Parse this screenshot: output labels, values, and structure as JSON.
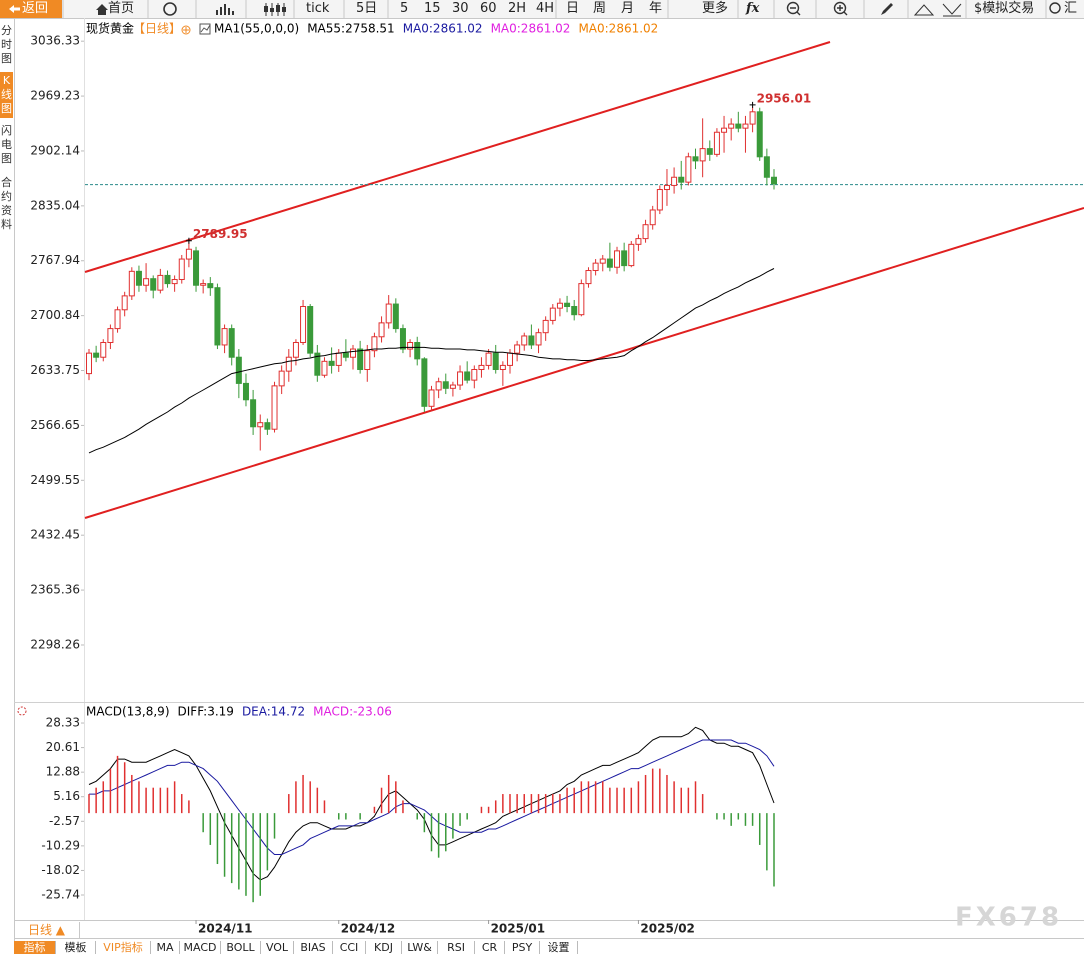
{
  "toolbar": [
    "返回",
    "首页",
    "tick",
    "5日",
    "5",
    "15",
    "30",
    "60",
    "2H",
    "4H",
    "日",
    "周",
    "月",
    "年",
    "更多",
    "fx",
    "$模拟交易",
    "汇"
  ],
  "sidebar": [
    "分时图",
    "K线图",
    "闪电图",
    "合约资料"
  ],
  "bottom": {
    "period": "日线 ▲",
    "tabs": [
      "指标",
      "模板",
      "VIP指标",
      "MA",
      "MACD",
      "BOLL",
      "VOL",
      "BIAS",
      "CCI",
      "KDJ",
      "LW&",
      "RSI",
      "CR",
      "PSY",
      "设置"
    ]
  },
  "watermark": "FX678",
  "chart_data": [
    {
      "type": "candlestick",
      "title": "现货黄金",
      "period": "【日线】",
      "legend": [
        {
          "label": "MA1(55,0,0,0)",
          "color": "#000000"
        },
        {
          "label": "MA55:2758.51",
          "color": "#000000"
        },
        {
          "label": "MA0:2861.02",
          "color": "#1a1aa0"
        },
        {
          "label": "MA0:2861.02",
          "color": "#e020e0"
        },
        {
          "label": "MA0:2861.02",
          "color": "#f08000"
        }
      ],
      "categories": [
        null,
        null,
        null,
        null,
        null,
        null,
        null,
        null,
        null,
        null,
        null,
        null,
        null,
        null,
        null,
        "2024/11",
        null,
        null,
        null,
        null,
        null,
        null,
        null,
        null,
        null,
        null,
        null,
        null,
        null,
        null,
        null,
        null,
        null,
        null,
        null,
        "2024/12",
        null,
        null,
        null,
        null,
        null,
        null,
        null,
        null,
        null,
        null,
        null,
        null,
        null,
        null,
        null,
        null,
        null,
        null,
        null,
        null,
        "2025/01",
        null,
        null,
        null,
        null,
        null,
        null,
        null,
        null,
        null,
        null,
        null,
        null,
        null,
        null,
        null,
        null,
        null,
        null,
        null,
        null,
        "2025/02",
        null,
        null,
        null,
        null,
        null,
        null,
        null,
        null,
        null,
        null,
        null,
        null,
        null,
        null,
        null,
        null,
        null,
        null,
        null
      ],
      "open": [
        2630,
        2655,
        2650,
        2668,
        2685,
        2708,
        2725,
        2755,
        2738,
        2746,
        2732,
        2750,
        2740,
        2745,
        2770,
        2780,
        2738,
        2740,
        2735,
        2665,
        2685,
        2650,
        2618,
        2598,
        2565,
        2570,
        2562,
        2615,
        2633,
        2650,
        2668,
        2712,
        2655,
        2628,
        2645,
        2640,
        2655,
        2650,
        2660,
        2635,
        2658,
        2675,
        2692,
        2715,
        2685,
        2660,
        2668,
        2648,
        2590,
        2610,
        2620,
        2612,
        2616,
        2632,
        2622,
        2635,
        2640,
        2655,
        2635,
        2640,
        2655,
        2665,
        2676,
        2665,
        2680,
        2695,
        2710,
        2716,
        2712,
        2702,
        2740,
        2756,
        2765,
        2770,
        2760,
        2780,
        2762,
        2788,
        2795,
        2812,
        2830,
        2855,
        2860,
        2870,
        2864,
        2895,
        2890,
        2905,
        2898,
        2925,
        2930,
        2935,
        2930,
        2935,
        2950,
        2895,
        2870
      ],
      "high": [
        2660,
        2664,
        2672,
        2690,
        2712,
        2730,
        2760,
        2762,
        2765,
        2750,
        2758,
        2756,
        2750,
        2775,
        2789.95,
        2785,
        2745,
        2748,
        2740,
        2690,
        2690,
        2660,
        2630,
        2610,
        2580,
        2575,
        2620,
        2640,
        2660,
        2672,
        2720,
        2715,
        2665,
        2650,
        2662,
        2660,
        2672,
        2665,
        2670,
        2665,
        2680,
        2700,
        2726,
        2722,
        2690,
        2672,
        2675,
        2650,
        2615,
        2625,
        2630,
        2620,
        2640,
        2645,
        2640,
        2650,
        2660,
        2665,
        2645,
        2660,
        2670,
        2680,
        2690,
        2685,
        2700,
        2715,
        2722,
        2725,
        2720,
        2745,
        2760,
        2770,
        2775,
        2790,
        2785,
        2790,
        2792,
        2800,
        2818,
        2835,
        2860,
        2880,
        2882,
        2890,
        2900,
        2905,
        2942,
        2915,
        2930,
        2945,
        2942,
        2950,
        2945,
        2956.01,
        2955,
        2905,
        2880
      ],
      "low": [
        2622,
        2644,
        2645,
        2660,
        2680,
        2700,
        2720,
        2730,
        2730,
        2722,
        2728,
        2735,
        2730,
        2740,
        2760,
        2730,
        2728,
        2725,
        2660,
        2655,
        2640,
        2600,
        2590,
        2555,
        2536,
        2555,
        2558,
        2605,
        2620,
        2640,
        2665,
        2650,
        2620,
        2625,
        2630,
        2632,
        2645,
        2635,
        2630,
        2620,
        2650,
        2668,
        2685,
        2680,
        2655,
        2650,
        2640,
        2583,
        2585,
        2600,
        2605,
        2602,
        2610,
        2618,
        2612,
        2625,
        2635,
        2630,
        2615,
        2630,
        2645,
        2658,
        2660,
        2655,
        2670,
        2690,
        2700,
        2705,
        2695,
        2700,
        2735,
        2750,
        2755,
        2755,
        2752,
        2755,
        2760,
        2780,
        2790,
        2806,
        2825,
        2835,
        2850,
        2855,
        2860,
        2880,
        2870,
        2890,
        2895,
        2900,
        2915,
        2925,
        2900,
        2925,
        2890,
        2860,
        2855
      ],
      "close": [
        2655,
        2650,
        2668,
        2685,
        2708,
        2725,
        2755,
        2738,
        2746,
        2732,
        2750,
        2740,
        2745,
        2770,
        2782,
        2738,
        2740,
        2735,
        2665,
        2685,
        2650,
        2618,
        2598,
        2565,
        2570,
        2562,
        2615,
        2633,
        2650,
        2668,
        2712,
        2655,
        2628,
        2645,
        2640,
        2655,
        2650,
        2660,
        2635,
        2658,
        2675,
        2692,
        2715,
        2685,
        2660,
        2668,
        2648,
        2590,
        2610,
        2620,
        2612,
        2616,
        2632,
        2622,
        2635,
        2640,
        2655,
        2635,
        2640,
        2655,
        2665,
        2676,
        2665,
        2680,
        2695,
        2710,
        2716,
        2712,
        2702,
        2740,
        2756,
        2765,
        2770,
        2760,
        2780,
        2762,
        2788,
        2795,
        2812,
        2830,
        2855,
        2860,
        2870,
        2864,
        2895,
        2890,
        2905,
        2898,
        2925,
        2930,
        2935,
        2930,
        2935,
        2950,
        2895,
        2870,
        2862
      ],
      "up_color": "#e03030",
      "down_color": "#3a9a3a",
      "annotation_color": "#d03030",
      "series": [
        {
          "color": "#000000",
          "values": [
            2533,
            2537,
            2540,
            2544,
            2548,
            2552,
            2557,
            2562,
            2568,
            2573,
            2578,
            2583,
            2589,
            2594,
            2600,
            2605,
            2610,
            2615,
            2620,
            2625,
            2630,
            2632,
            2634,
            2636,
            2638,
            2640,
            2642,
            2643,
            2645,
            2646,
            2648,
            2649,
            2651,
            2652,
            2654,
            2655,
            2656,
            2657,
            2658,
            2659,
            2660,
            2660,
            2661,
            2661,
            2662,
            2662,
            2662,
            2662,
            2661,
            2661,
            2660,
            2660,
            2660,
            2659,
            2659,
            2658,
            2657,
            2656,
            2656,
            2655,
            2654,
            2653,
            2652,
            2650,
            2649,
            2648,
            2648,
            2647,
            2647,
            2646,
            2646,
            2647,
            2648,
            2649,
            2650,
            2652,
            2658,
            2663,
            2669,
            2674,
            2680,
            2686,
            2692,
            2698,
            2704,
            2710,
            2714,
            2719,
            2723,
            2728,
            2732,
            2736,
            2741,
            2745,
            2749,
            2754,
            2758.51
          ]
        }
      ],
      "last_price": 2861.02,
      "last_price_color": "#2a8a8a",
      "ylim": [
        2231,
        3050
      ],
      "yticks": [
        3036.33,
        2969.23,
        2902.14,
        2835.04,
        2767.94,
        2700.84,
        2633.75,
        2566.65,
        2499.55,
        2432.45,
        2365.36,
        2298.26
      ]
    },
    {
      "type": "macd",
      "legend": [
        {
          "label": "MACD(13,8,9)",
          "color": "#000000"
        },
        {
          "label": "DIFF:3.19",
          "color": "#000000"
        },
        {
          "label": "DEA:14.72",
          "color": "#1a1aa0"
        },
        {
          "label": "MACD:-23.06",
          "color": "#e020e0"
        }
      ],
      "series": [
        {
          "style": "line",
          "color": "#000000",
          "values": [
            9,
            10,
            12,
            14,
            17,
            17,
            16,
            16,
            16,
            17,
            18,
            19,
            20,
            19,
            18,
            15,
            11,
            7,
            2,
            -3,
            -7,
            -11,
            -15,
            -19,
            -21,
            -20,
            -17,
            -13,
            -9,
            -6,
            -4,
            -3,
            -3,
            -4,
            -5,
            -5,
            -5,
            -4,
            -4,
            -3,
            -1,
            3,
            6,
            7,
            5,
            3,
            1,
            -2,
            -7,
            -10,
            -10,
            -9,
            -8,
            -7,
            -6,
            -5,
            -4,
            -3,
            -1,
            0,
            1,
            2,
            3,
            4,
            5,
            6,
            7,
            9,
            10,
            12,
            13,
            14,
            15,
            15,
            16,
            17,
            18,
            19,
            21,
            23,
            24,
            24,
            24,
            24,
            25,
            27,
            26,
            23,
            22,
            22,
            21,
            21,
            20,
            19,
            15,
            9,
            3.19
          ]
        },
        {
          "style": "line",
          "color": "#1a1aa0",
          "values": [
            6,
            6,
            7,
            7,
            8,
            9,
            10,
            11,
            12,
            13,
            14,
            15,
            15,
            16,
            16,
            15,
            14,
            12,
            10,
            7,
            4,
            1,
            -2,
            -5,
            -8,
            -11,
            -13,
            -13,
            -12,
            -11,
            -10,
            -8,
            -7,
            -6,
            -5,
            -4,
            -4,
            -4,
            -3,
            -3,
            -2,
            -1,
            0,
            2,
            3,
            3,
            2,
            1,
            -1,
            -3,
            -4,
            -5,
            -6,
            -6,
            -6,
            -6,
            -5,
            -5,
            -4,
            -3,
            -2,
            -1,
            0,
            1,
            2,
            3,
            4,
            5,
            6,
            7,
            8,
            9,
            10,
            11,
            12,
            13,
            14,
            14,
            15,
            16,
            17,
            18,
            19,
            20,
            21,
            22,
            23,
            23,
            23,
            23,
            23,
            22,
            22,
            21,
            20,
            18,
            14.72
          ]
        },
        {
          "style": "bar",
          "color": "#e03030",
          "negative_color": "#3a9a3a",
          "values": [
            6,
            8,
            10,
            14,
            18,
            16,
            12,
            10,
            8,
            8,
            8,
            8,
            10,
            6,
            4,
            0,
            -6,
            -10,
            -16,
            -20,
            -22,
            -24,
            -26,
            -28,
            -26,
            -18,
            -8,
            0,
            6,
            10,
            12,
            10,
            8,
            4,
            0,
            -2,
            -2,
            0,
            -2,
            0,
            2,
            8,
            12,
            10,
            4,
            0,
            -2,
            -6,
            -12,
            -14,
            -12,
            -8,
            -4,
            -2,
            0,
            2,
            2,
            4,
            6,
            6,
            6,
            6,
            6,
            6,
            6,
            6,
            6,
            8,
            8,
            10,
            10,
            10,
            10,
            8,
            8,
            8,
            8,
            10,
            12,
            14,
            14,
            12,
            10,
            8,
            8,
            10,
            6,
            0,
            -2,
            -2,
            -4,
            -2,
            -4,
            -4,
            -10,
            -18,
            -23.06
          ]
        }
      ],
      "ylim": [
        -33.6,
        34
      ],
      "yticks": [
        28.33,
        20.61,
        12.88,
        5.16,
        -2.57,
        -10.29,
        -18.02,
        -25.74
      ]
    }
  ]
}
